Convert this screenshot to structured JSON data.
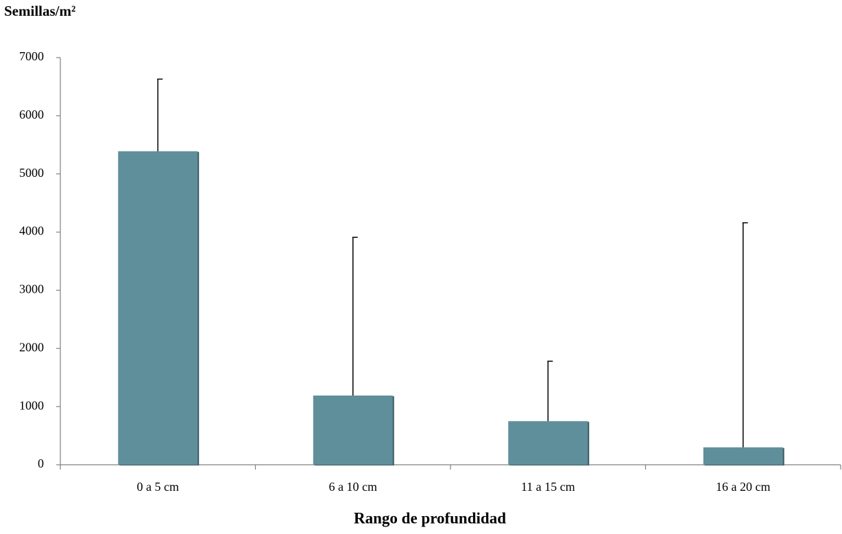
{
  "chart_data": {
    "type": "bar",
    "title": "Semillas/m²",
    "x_label": "Rango de profundidad",
    "categories": [
      "0 a 5 cm",
      "6 a 10 cm",
      "11 a 15 cm",
      "16 a 20 cm"
    ],
    "values": [
      5390,
      1190,
      750,
      300
    ],
    "errors": [
      1240,
      2720,
      1030,
      3860
    ],
    "color": "#5f8f9a",
    "ylim": [
      0,
      7000
    ],
    "yticks": [
      0,
      1000,
      2000,
      3000,
      4000,
      5000,
      6000,
      7000
    ],
    "grid": false
  }
}
